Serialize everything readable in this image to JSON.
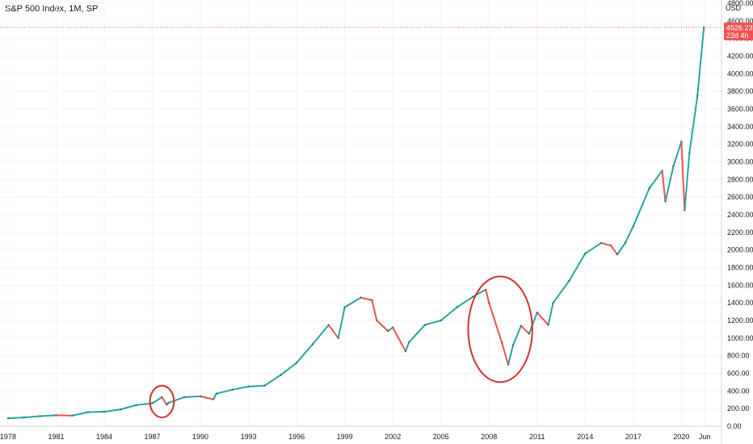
{
  "header": {
    "title": "S&P 500 Index, 1M, SP"
  },
  "price_axis": {
    "unit": "USD"
  },
  "last_price": {
    "value": "4526.23",
    "countdown": "23d 4h"
  },
  "colors": {
    "up": "#26a69a",
    "down": "#ef5350",
    "annotation": "#d32f2f",
    "grid": "#f0f3fa",
    "axis_text": "#131722"
  },
  "annotations": [
    {
      "type": "ellipse",
      "note": "1987 crash",
      "center_year": 1987.6,
      "center_price": 280,
      "radius_years": 0.75,
      "radius_price": 180
    },
    {
      "type": "ellipse",
      "note": "2008 crisis",
      "center_year": 2008.7,
      "center_price": 1100,
      "radius_years": 2.0,
      "radius_price": 600
    }
  ],
  "chart_data": {
    "type": "line",
    "title": "S&P 500 Index, 1M, SP",
    "xlabel": "",
    "ylabel": "USD",
    "ylim": [
      0,
      4800
    ],
    "xlim": [
      1977.5,
      2022.5
    ],
    "y_ticks": [
      "0.00",
      "200.00",
      "400.00",
      "600.00",
      "800.00",
      "1000.00",
      "1200.00",
      "1400.00",
      "1600.00",
      "1800.00",
      "2000.00",
      "2200.00",
      "2400.00",
      "2600.00",
      "2800.00",
      "3000.00",
      "3200.00",
      "3400.00",
      "3600.00",
      "3800.00",
      "4000.00",
      "4200.00",
      "4400.00",
      "4600.00",
      "4800.00"
    ],
    "x_ticks": [
      "1978",
      "1981",
      "1984",
      "1987",
      "1990",
      "1993",
      "1996",
      "1999",
      "2002",
      "2005",
      "2008",
      "2011",
      "2014",
      "2017",
      "2020",
      "Jun"
    ],
    "x_tick_years": [
      1978,
      1981,
      1984,
      1987,
      1990,
      1993,
      1996,
      1999,
      2002,
      2005,
      2008,
      2011,
      2014,
      2017,
      2020,
      2021.45
    ],
    "grid": true,
    "series": [
      {
        "x": [
          1978,
          1979,
          1980,
          1981,
          1982,
          1983,
          1984,
          1985,
          1986,
          1987,
          1987.6,
          1987.9,
          1988,
          1989,
          1990,
          1990.8,
          1991,
          1992,
          1993,
          1994,
          1995,
          1996,
          1997,
          1998,
          1998.6,
          1999,
          2000,
          2000.7,
          2001,
          2001.7,
          2002,
          2002.8,
          2003,
          2004,
          2005,
          2006,
          2007,
          2007.8,
          2008,
          2008.8,
          2009.2,
          2009.5,
          2010,
          2010.5,
          2011,
          2011.7,
          2012,
          2013,
          2014,
          2015,
          2015.6,
          2016,
          2016.5,
          2017,
          2018,
          2018.8,
          2019,
          2019.5,
          2020,
          2020.2,
          2020.5,
          2021,
          2021.4
        ],
        "values": [
          90,
          100,
          115,
          125,
          120,
          160,
          165,
          190,
          240,
          260,
          330,
          245,
          265,
          330,
          340,
          305,
          370,
          415,
          450,
          460,
          580,
          720,
          930,
          1150,
          1000,
          1350,
          1460,
          1430,
          1200,
          1080,
          1120,
          850,
          950,
          1150,
          1200,
          1350,
          1470,
          1550,
          1400,
          950,
          700,
          920,
          1140,
          1050,
          1290,
          1150,
          1400,
          1650,
          1960,
          2080,
          2050,
          1950,
          2080,
          2270,
          2700,
          2900,
          2550,
          2950,
          3230,
          2450,
          3100,
          3750,
          4526
        ]
      }
    ]
  }
}
